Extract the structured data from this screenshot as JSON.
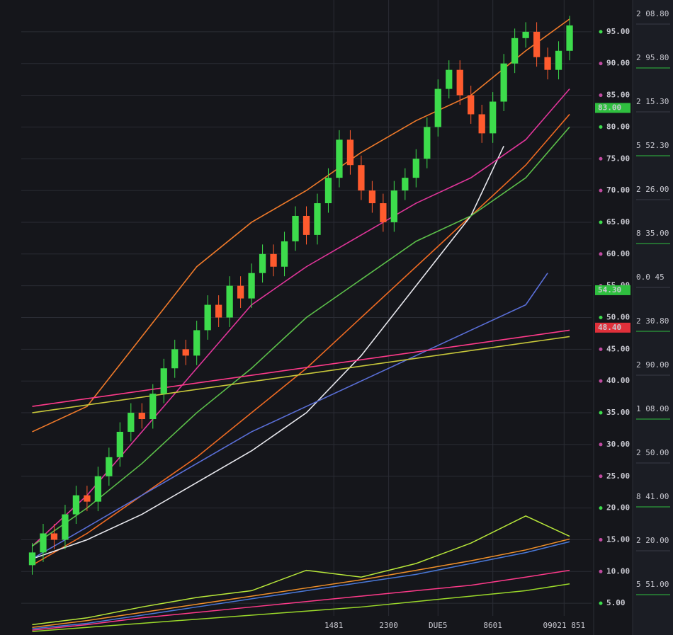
{
  "chart_data": [
    {
      "type": "candlestick",
      "x": [
        0,
        1,
        2,
        3,
        4,
        5,
        6,
        7,
        8,
        9,
        10,
        11,
        12,
        13,
        14,
        15,
        16,
        17,
        18,
        19,
        20,
        21,
        22,
        23,
        24,
        25,
        26,
        27,
        28,
        29,
        30,
        31,
        32,
        33,
        34,
        35,
        36,
        37,
        38,
        39,
        40,
        41,
        42,
        43,
        44,
        45,
        46,
        47,
        48,
        49
      ],
      "open": [
        11,
        13,
        16,
        15,
        19,
        22,
        21,
        25,
        28,
        32,
        35,
        34,
        38,
        42,
        45,
        44,
        48,
        52,
        50,
        55,
        53,
        57,
        60,
        58,
        62,
        66,
        63,
        68,
        72,
        78,
        74,
        70,
        68,
        65,
        70,
        72,
        75,
        80,
        86,
        89,
        85,
        82,
        79,
        84,
        90,
        94,
        95,
        91,
        89,
        92
      ],
      "close": [
        13,
        16,
        15,
        19,
        22,
        21,
        25,
        28,
        32,
        35,
        34,
        38,
        42,
        45,
        44,
        48,
        52,
        50,
        55,
        53,
        57,
        60,
        58,
        62,
        66,
        63,
        68,
        72,
        78,
        74,
        70,
        68,
        65,
        70,
        72,
        75,
        80,
        86,
        89,
        85,
        82,
        79,
        84,
        90,
        94,
        95,
        91,
        89,
        92,
        96
      ],
      "high": [
        14.5,
        17.5,
        17.5,
        20.5,
        23.5,
        23.5,
        26.5,
        29.5,
        33.5,
        36.5,
        36.5,
        39.5,
        43.5,
        46.5,
        46.5,
        49.5,
        53.5,
        53.5,
        56.5,
        56.5,
        58.5,
        61.5,
        61.5,
        63.5,
        67.5,
        67.5,
        69.5,
        73.5,
        79.5,
        79.5,
        75.5,
        71.5,
        69.5,
        71.5,
        73.5,
        76.5,
        81.5,
        87.5,
        90.5,
        90.5,
        86.5,
        83.5,
        85.5,
        91.5,
        95.5,
        96.5,
        96.5,
        92.5,
        93.5,
        97.5
      ],
      "low": [
        9.5,
        11.5,
        13.5,
        13.5,
        17.5,
        19.5,
        19.5,
        23.5,
        26.5,
        30.5,
        32.5,
        32.5,
        36.5,
        40.5,
        42.5,
        42.5,
        46.5,
        48.5,
        48.5,
        51.5,
        51.5,
        55.5,
        56.5,
        56.5,
        60.5,
        61.5,
        61.5,
        66.5,
        70.5,
        72.5,
        68.5,
        66.5,
        63.5,
        63.5,
        68.5,
        70.5,
        73.5,
        78.5,
        84.5,
        83.5,
        80.5,
        77.5,
        77.5,
        82.5,
        88.5,
        92.5,
        89.5,
        87.5,
        87.5,
        90.5
      ],
      "up_color": "#3ddc4c",
      "down_color": "#ff5b2e",
      "xlim": [
        -1,
        51
      ],
      "ylim": [
        0,
        100
      ],
      "xticks": [
        {
          "value": 27.5,
          "label": "1481"
        },
        {
          "value": 32.5,
          "label": "2300"
        },
        {
          "value": 37,
          "label": "DUE5"
        },
        {
          "value": 42,
          "label": "8601"
        },
        {
          "value": 48.5,
          "label": "09021 851"
        }
      ],
      "yticks": [
        {
          "value": 95,
          "label": "95.00"
        },
        {
          "value": 90,
          "label": "90.00"
        },
        {
          "value": 85,
          "label": "85.00"
        },
        {
          "value": 80,
          "label": "80.00"
        },
        {
          "value": 75,
          "label": "75.00"
        },
        {
          "value": 70,
          "label": "70.00"
        },
        {
          "value": 65,
          "label": "65.00"
        },
        {
          "value": 60,
          "label": "60.00"
        },
        {
          "value": 55,
          "label": "55.00"
        },
        {
          "value": 50,
          "label": "50.00"
        },
        {
          "value": 45,
          "label": "45.00"
        },
        {
          "value": 40,
          "label": "40.00"
        },
        {
          "value": 35,
          "label": "35.00"
        },
        {
          "value": 30,
          "label": "30.00"
        },
        {
          "value": 25,
          "label": "25.00"
        },
        {
          "value": 20,
          "label": "20.00"
        },
        {
          "value": 15,
          "label": "15.00"
        },
        {
          "value": 10,
          "label": "10.00"
        },
        {
          "value": 5,
          "label": "5.00"
        }
      ],
      "grid": true,
      "overlays": [
        {
          "color": "#f07a2a",
          "x": [
            0,
            5,
            10,
            15,
            20,
            25,
            30,
            35,
            40,
            45,
            49
          ],
          "values": [
            32,
            36,
            47,
            58,
            65,
            70,
            76,
            81,
            85,
            92,
            97
          ]
        },
        {
          "color": "#ee6a22",
          "x": [
            0,
            5,
            10,
            15,
            20,
            25,
            30,
            35,
            40,
            45,
            49
          ],
          "values": [
            11,
            16,
            22,
            28,
            35,
            42,
            50,
            58,
            66,
            74,
            82
          ]
        },
        {
          "color": "#e8e8ee",
          "x": [
            0,
            5,
            10,
            15,
            20,
            25,
            30,
            35,
            40,
            43
          ],
          "values": [
            12,
            15,
            19,
            24,
            29,
            35,
            44,
            55,
            66,
            77
          ]
        },
        {
          "color": "#e0359a",
          "x": [
            0,
            5,
            10,
            15,
            20,
            25,
            30,
            35,
            40,
            45,
            49
          ],
          "values": [
            14,
            22,
            32,
            42,
            52,
            58,
            63,
            68,
            72,
            78,
            86
          ]
        },
        {
          "color": "#5a6fd8",
          "x": [
            0,
            5,
            10,
            15,
            20,
            25,
            30,
            35,
            40,
            45,
            47
          ],
          "values": [
            12,
            17,
            22,
            27,
            32,
            36,
            40,
            44,
            48,
            52,
            57
          ]
        },
        {
          "color": "#5cc04a",
          "x": [
            0,
            5,
            10,
            15,
            20,
            25,
            30,
            35,
            40,
            45,
            49
          ],
          "values": [
            14,
            20,
            27,
            35,
            42,
            50,
            56,
            62,
            66,
            72,
            80
          ]
        },
        {
          "color": "#c8c83a",
          "x": [
            0,
            49
          ],
          "values": [
            35,
            47
          ]
        },
        {
          "color": "#ff3a8a",
          "x": [
            0,
            49
          ],
          "values": [
            36,
            48
          ]
        }
      ],
      "markers": [
        {
          "value": 54.3,
          "label": "54.30",
          "color": "#2fbf3f"
        },
        {
          "value": 48.4,
          "label": "48.40",
          "color": "#e0303a"
        },
        {
          "value": 83,
          "label": "83.00",
          "color": "#2fbf3f"
        }
      ]
    },
    {
      "type": "line",
      "x": [
        0,
        5,
        10,
        15,
        20,
        25,
        30,
        35,
        40,
        45,
        49
      ],
      "xlim": [
        -1,
        51
      ],
      "ylim": [
        0,
        100
      ],
      "series": [
        {
          "color": "#b8e83a",
          "values": [
            5,
            10,
            18,
            25,
            30,
            45,
            40,
            50,
            65,
            85,
            70
          ]
        },
        {
          "color": "#f0902a",
          "values": [
            3,
            8,
            14,
            20,
            26,
            32,
            38,
            45,
            52,
            60,
            68
          ]
        },
        {
          "color": "#4a78d8",
          "values": [
            2,
            6,
            12,
            18,
            24,
            30,
            36,
            42,
            50,
            58,
            66
          ]
        },
        {
          "color": "#ff3a8a",
          "values": [
            1,
            5,
            10,
            14,
            18,
            22,
            26,
            30,
            34,
            40,
            45
          ]
        },
        {
          "color": "#9ad82a",
          "values": [
            0,
            3,
            6,
            9,
            12,
            15,
            18,
            22,
            26,
            30,
            35
          ]
        }
      ]
    }
  ],
  "side_panel": [
    "2 08.80",
    "2 95.80",
    "2 15.30",
    "5 52.30",
    "2 26.00",
    "8 35.00",
    "0.0 45",
    "2 30.80",
    "2 90.00",
    "1 08.00",
    "2 50.00",
    "8 41.00",
    "2 20.00",
    "5 51.00"
  ]
}
